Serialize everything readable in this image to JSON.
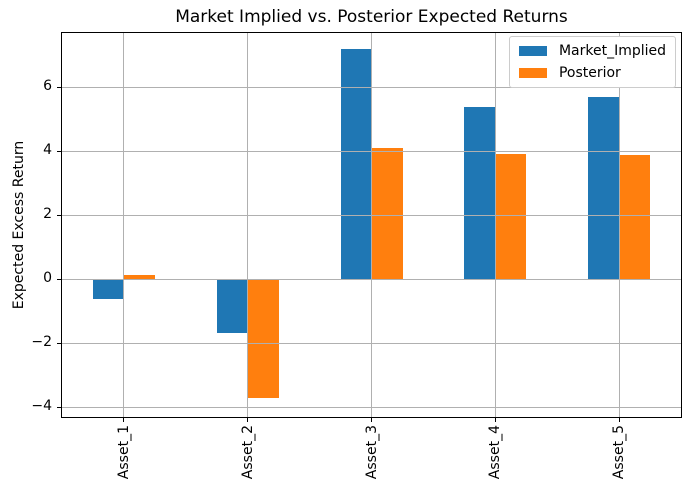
{
  "chart_data": {
    "type": "bar",
    "title": "Market Implied vs. Posterior Expected Returns",
    "xlabel": "",
    "ylabel": "Expected Excess Return",
    "categories": [
      "Asset_1",
      "Asset_2",
      "Asset_3",
      "Asset_4",
      "Asset_5"
    ],
    "series": [
      {
        "name": "Market_Implied",
        "color": "#1f77b4",
        "values": [
          -0.62,
          -1.68,
          7.19,
          5.38,
          5.68
        ]
      },
      {
        "name": "Posterior",
        "color": "#ff7f0e",
        "values": [
          0.13,
          -3.71,
          4.1,
          3.9,
          3.89
        ]
      }
    ],
    "yticks": [
      -4,
      -2,
      0,
      2,
      4,
      6
    ],
    "ylim": [
      -4.31,
      7.69
    ],
    "bar_width_fraction": 0.25,
    "grid": true,
    "grid_over_bars": true,
    "legend_position": "upper right",
    "x_tick_rotation": 90
  },
  "colors": {
    "grid": "#b0b0b0",
    "spine": "#000000",
    "legend_border": "#cccccc",
    "background": "#ffffff"
  }
}
